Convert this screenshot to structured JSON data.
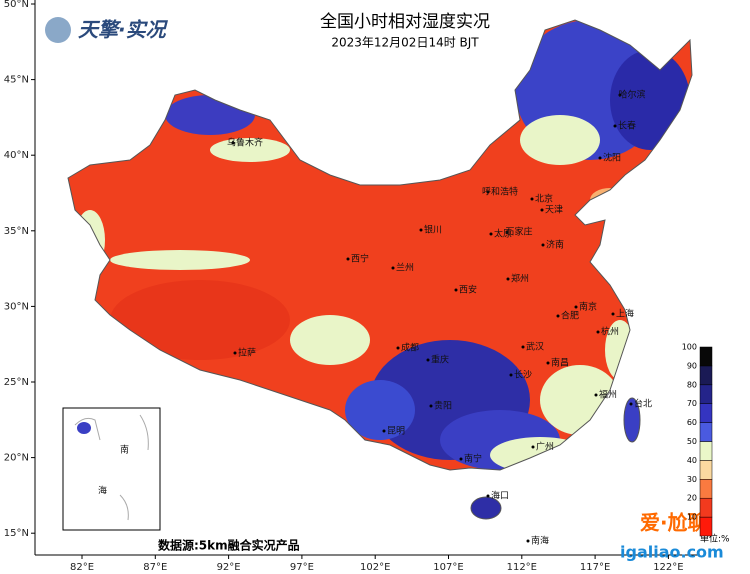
{
  "header": {
    "title": "全国小时相对湿度实况",
    "subtitle": "2023年12月02日14时  BJT"
  },
  "logo": "天擎·实况",
  "lat_labels": [
    "50°N",
    "45°N",
    "40°N",
    "35°N",
    "30°N",
    "25°N",
    "20°N",
    "15°N"
  ],
  "lon_labels": [
    "82°E",
    "87°E",
    "92°E",
    "97°E",
    "102°E",
    "107°E",
    "112°E",
    "117°E",
    "122°E"
  ],
  "cities": [
    "乌鲁木齐",
    "哈尔滨",
    "长春",
    "沈阳",
    "呼和浩特",
    "北京",
    "天津",
    "石家庄",
    "太原",
    "银川",
    "济南",
    "西宁",
    "兰州",
    "郑州",
    "西安",
    "南京",
    "合肥",
    "上海",
    "杭州",
    "成都",
    "重庆",
    "武汉",
    "拉萨",
    "长沙",
    "南昌",
    "福州",
    "台北",
    "贵阳",
    "昆明",
    "南宁",
    "广州",
    "海口",
    "南海"
  ],
  "inset_labels": [
    "南",
    "海"
  ],
  "colorbar": {
    "ticks": [
      10,
      20,
      30,
      40,
      50,
      60,
      70,
      80,
      90,
      100
    ],
    "unit": "单位:%"
  },
  "source": "数据源:5km融合实况产品",
  "watermark": {
    "name": "爱·尬聊",
    "url": "igaliao.com"
  }
}
